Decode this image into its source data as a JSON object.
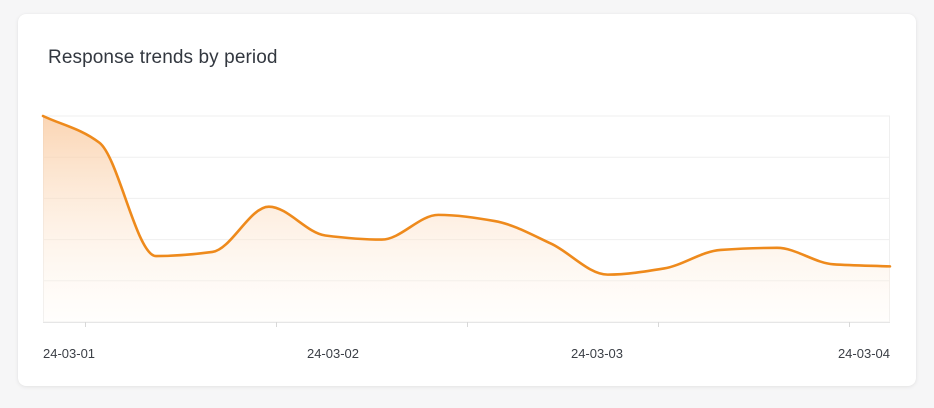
{
  "card": {
    "title": "Response trends by period"
  },
  "chart_data": {
    "type": "area",
    "title": "Response trends by period",
    "xlabel": "",
    "ylabel": "",
    "x_tick_labels": [
      "24-03-01",
      "24-03-02",
      "24-03-03",
      "24-03-04"
    ],
    "x": [
      0,
      0.25,
      0.5,
      0.75,
      1,
      1.25,
      1.5,
      1.75,
      2,
      2.25,
      2.5,
      2.75,
      3,
      3.25,
      3.5,
      3.75
    ],
    "series": [
      {
        "values": [
          100,
          87,
          32,
          34,
          56,
          42,
          40,
          52,
          49,
          38,
          23,
          26,
          35,
          36,
          28,
          27
        ],
        "color": "#ee8a1c"
      }
    ],
    "ylim": [
      0,
      100
    ],
    "grid": true,
    "legend": "none",
    "fill_gradient": [
      "#f9c79a",
      "#fff8f0"
    ]
  }
}
